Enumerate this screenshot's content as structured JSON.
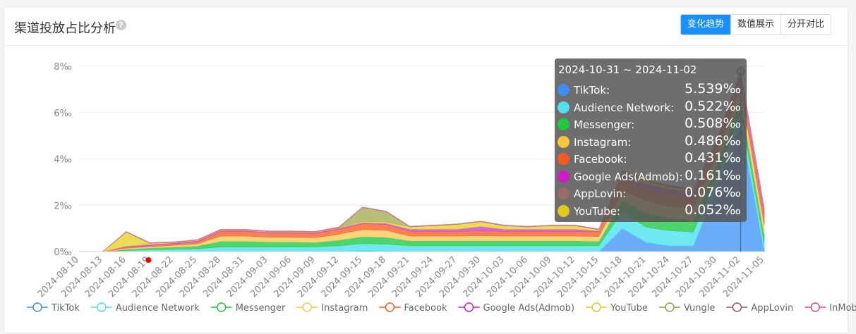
{
  "header": {
    "title": "渠道投放占比分析",
    "help_icon": "?",
    "modes": [
      "变化趋势",
      "数值展示",
      "分开对比"
    ],
    "active_mode": "变化趋势"
  },
  "tooltip": {
    "range": "2024-10-31 ~ 2024-11-02",
    "rows": [
      {
        "name": "TikTok:",
        "value": "5.539‰",
        "color": "#3d8df5"
      },
      {
        "name": "Audience Network:",
        "value": "0.522‰",
        "color": "#4fe0f0"
      },
      {
        "name": "Messenger:",
        "value": "0.508‰",
        "color": "#20c840"
      },
      {
        "name": "Instagram:",
        "value": "0.486‰",
        "color": "#fcc43c"
      },
      {
        "name": "Facebook:",
        "value": "0.431‰",
        "color": "#f45a22"
      },
      {
        "name": "Google Ads(Admob):",
        "value": "0.161‰",
        "color": "#d01cc8"
      },
      {
        "name": "AppLovin:",
        "value": "0.076‰",
        "color": "#9a6a66"
      },
      {
        "name": "YouTube:",
        "value": "0.052‰",
        "color": "#e3c81e"
      }
    ]
  },
  "chart_data": {
    "type": "area",
    "stacked": true,
    "x": [
      "2024-08-10",
      "2024-08-13",
      "2024-08-16",
      "2024-08-19",
      "2024-08-22",
      "2024-08-25",
      "2024-08-28",
      "2024-08-31",
      "2024-09-03",
      "2024-09-06",
      "2024-09-09",
      "2024-09-12",
      "2024-09-15",
      "2024-09-18",
      "2024-09-21",
      "2024-09-24",
      "2024-09-27",
      "2024-09-30",
      "2024-10-03",
      "2024-10-06",
      "2024-10-09",
      "2024-10-12",
      "2024-10-15",
      "2024-10-18",
      "2024-10-21",
      "2024-10-24",
      "2024-10-27",
      "2024-10-30",
      "2024-11-02",
      "2024-11-05"
    ],
    "y_ticks": [
      "0‰",
      "2‰",
      "4‰",
      "6‰",
      "8‰"
    ],
    "ylim": [
      0,
      8
    ],
    "y_unit": "‰",
    "grid": true,
    "legend_position": "bottom",
    "series": [
      {
        "name": "TikTok",
        "color": "#5aa3f8",
        "values": [
          0,
          0,
          0,
          0,
          0,
          0,
          0,
          0,
          0,
          0,
          0,
          0,
          0.05,
          0.02,
          0,
          0,
          0,
          0,
          0,
          0,
          0,
          0,
          0,
          1.0,
          0.4,
          0.25,
          0.25,
          2.8,
          5.539,
          0.05
        ]
      },
      {
        "name": "Audience Network",
        "color": "#5ee5f0",
        "values": [
          0,
          0,
          0.05,
          0.08,
          0.1,
          0.12,
          0.2,
          0.2,
          0.2,
          0.2,
          0.2,
          0.25,
          0.3,
          0.3,
          0.25,
          0.25,
          0.25,
          0.25,
          0.25,
          0.25,
          0.25,
          0.25,
          0.25,
          0.75,
          0.65,
          0.65,
          0.6,
          0.5,
          0.522,
          0.3
        ]
      },
      {
        "name": "Messenger",
        "color": "#3ccf5c",
        "values": [
          0,
          0,
          0.05,
          0.08,
          0.1,
          0.12,
          0.25,
          0.25,
          0.22,
          0.22,
          0.2,
          0.25,
          0.3,
          0.3,
          0.22,
          0.22,
          0.22,
          0.22,
          0.22,
          0.22,
          0.22,
          0.22,
          0.2,
          0.45,
          0.6,
          0.55,
          0.5,
          0.45,
          0.508,
          0.4
        ]
      },
      {
        "name": "Instagram",
        "color": "#fdd06a",
        "values": [
          0,
          0,
          0.05,
          0.05,
          0.07,
          0.1,
          0.22,
          0.22,
          0.2,
          0.2,
          0.2,
          0.25,
          0.3,
          0.3,
          0.2,
          0.2,
          0.2,
          0.22,
          0.2,
          0.2,
          0.2,
          0.2,
          0.2,
          0.45,
          0.55,
          0.5,
          0.5,
          0.45,
          0.486,
          0.4
        ]
      },
      {
        "name": "Facebook",
        "color": "#f9713e",
        "values": [
          0,
          0,
          0.04,
          0.05,
          0.06,
          0.08,
          0.2,
          0.2,
          0.18,
          0.18,
          0.18,
          0.22,
          0.25,
          0.25,
          0.2,
          0.2,
          0.2,
          0.2,
          0.2,
          0.2,
          0.2,
          0.2,
          0.2,
          0.5,
          0.5,
          0.55,
          0.5,
          0.4,
          0.431,
          0.4
        ]
      },
      {
        "name": "Google Ads(Admob)",
        "color": "#d454cc",
        "values": [
          0,
          0,
          0.05,
          0.05,
          0.05,
          0.05,
          0.05,
          0.05,
          0.05,
          0.05,
          0.05,
          0.05,
          0.05,
          0.05,
          0.1,
          0.1,
          0.1,
          0.2,
          0.1,
          0.1,
          0.1,
          0.1,
          0.05,
          0.2,
          0.2,
          0.2,
          0.2,
          0.15,
          0.161,
          0.2
        ]
      },
      {
        "name": "YouTube",
        "color": "#e8d840",
        "values": [
          0,
          0,
          0.6,
          0.05,
          0.02,
          0.02,
          0.02,
          0.02,
          0.02,
          0.02,
          0.02,
          0.02,
          0.05,
          0.05,
          0.1,
          0.15,
          0.2,
          0.2,
          0.15,
          0.1,
          0.15,
          0.15,
          0.05,
          0.1,
          0.15,
          0.1,
          0.1,
          0.05,
          0.052,
          0.05
        ]
      },
      {
        "name": "Vungle",
        "color": "#b0b868",
        "values": [
          0,
          0,
          0,
          0,
          0,
          0,
          0,
          0,
          0,
          0,
          0,
          0,
          0.6,
          0.45,
          0,
          0,
          0,
          0,
          0,
          0,
          0,
          0,
          0,
          0,
          0,
          0,
          0,
          0,
          0,
          0
        ]
      },
      {
        "name": "AppLovin",
        "color": "#a67a76",
        "values": [
          0,
          0,
          0.02,
          0.02,
          0.02,
          0.02,
          0.02,
          0.02,
          0.02,
          0.02,
          0.02,
          0.02,
          0.02,
          0.02,
          0.02,
          0.02,
          0.02,
          0.02,
          0.02,
          0.02,
          0.02,
          0.02,
          0.02,
          0.05,
          0.05,
          0.05,
          0.05,
          0.05,
          0.076,
          0.05
        ]
      },
      {
        "name": "InMobi",
        "color": "#e07ea6",
        "values": [
          0,
          0,
          0,
          0,
          0,
          0,
          0,
          0,
          0,
          0,
          0,
          0,
          0,
          0,
          0,
          0,
          0,
          0,
          0,
          0,
          0,
          0,
          0,
          0,
          0,
          0,
          0,
          0,
          0,
          0
        ]
      }
    ],
    "legend": [
      {
        "name": "TikTok",
        "color": "#3d8df5"
      },
      {
        "name": "Audience Network",
        "color": "#4fe0f0"
      },
      {
        "name": "Messenger",
        "color": "#20c840"
      },
      {
        "name": "Instagram",
        "color": "#fcc43c"
      },
      {
        "name": "Facebook",
        "color": "#f45a22"
      },
      {
        "name": "Google Ads(Admob)",
        "color": "#d01cc8"
      },
      {
        "name": "YouTube",
        "color": "#e3c81e"
      },
      {
        "name": "Vungle",
        "color": "#8da33c"
      },
      {
        "name": "AppLovin",
        "color": "#8a5e5a"
      },
      {
        "name": "InMobi",
        "color": "#d84a8a"
      }
    ],
    "highlight_x": "2024-11-02",
    "marker": {
      "x": "2024-08-19",
      "color": "#f00000"
    }
  }
}
